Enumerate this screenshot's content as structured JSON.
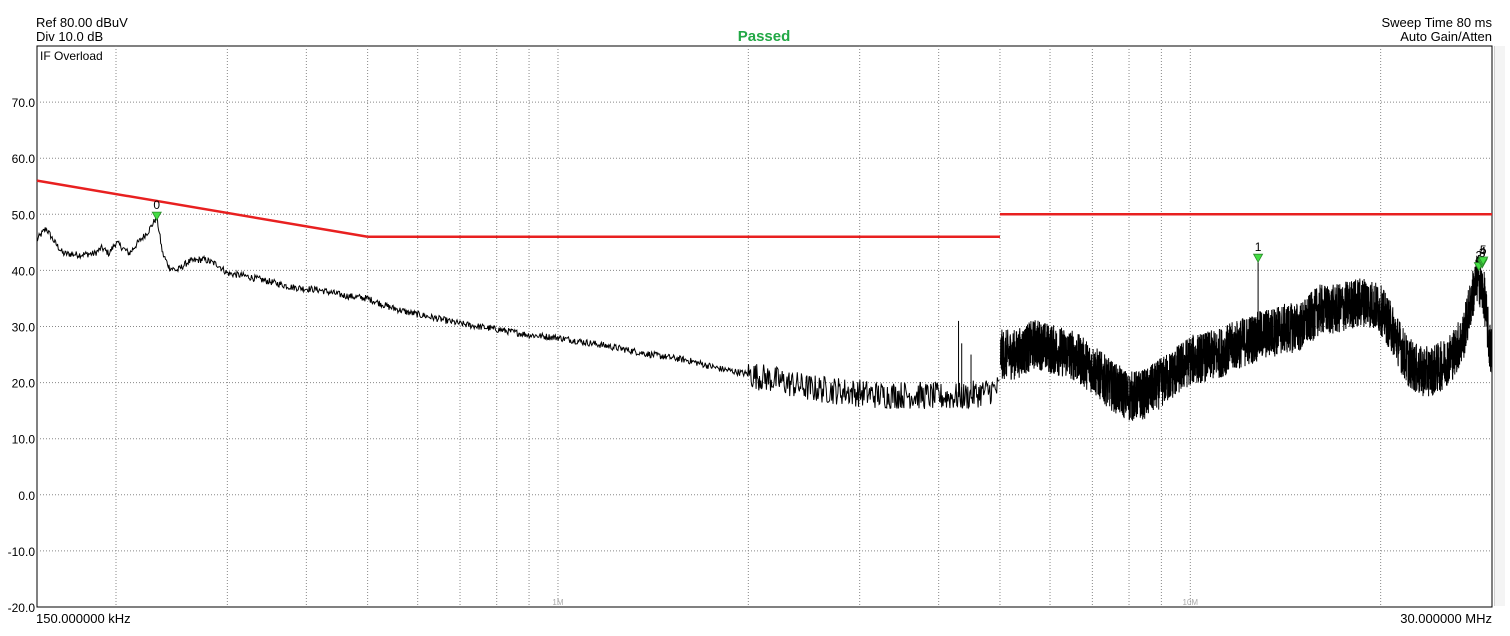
{
  "header": {
    "ref": "Ref 80.00 dBuV",
    "div": "Div 10.0 dB",
    "status": "Passed",
    "sweep_time": "Sweep Time 80 ms",
    "gain": "Auto Gain/Atten",
    "overload": "IF Overload",
    "status_color": "#22a845"
  },
  "chart_data": {
    "type": "line",
    "title": "",
    "xlabel": "",
    "ylabel": "",
    "x_scale": "log",
    "xlim_hz": [
      150000,
      30000000
    ],
    "ylim": [
      -20,
      80
    ],
    "grid": true,
    "x_start_label": "150.000000 kHz",
    "x_stop_label": "30.000000 MHz",
    "x_decade_labels": [
      {
        "hz": 1000000,
        "label": "1M"
      },
      {
        "hz": 10000000,
        "label": "10M"
      }
    ],
    "y_ticks": [
      {
        "value": 70,
        "label": "70.0"
      },
      {
        "value": 60,
        "label": "60.0"
      },
      {
        "value": 50,
        "label": "50.0"
      },
      {
        "value": 40,
        "label": "40.0"
      },
      {
        "value": 30,
        "label": "30.0"
      },
      {
        "value": 20,
        "label": "20.0"
      },
      {
        "value": 10,
        "label": "10.0"
      },
      {
        "value": 0,
        "label": "0.0"
      },
      {
        "value": -10,
        "label": "-10.0"
      },
      {
        "value": -20,
        "label": "-20.0"
      }
    ],
    "limit_lines": [
      {
        "x": [
          150000,
          500000
        ],
        "y": [
          56,
          46
        ],
        "color": "#e82020"
      },
      {
        "x": [
          500000,
          5000000
        ],
        "y": [
          46,
          46
        ],
        "color": "#e82020"
      },
      {
        "x": [
          5000000,
          30000000
        ],
        "y": [
          50,
          50
        ],
        "color": "#e82020"
      }
    ],
    "trace": {
      "color": "#000000",
      "points": [
        [
          150000,
          45.5
        ],
        [
          155000,
          47.5
        ],
        [
          160000,
          45
        ],
        [
          165000,
          43
        ],
        [
          175000,
          42.8
        ],
        [
          185000,
          43
        ],
        [
          190000,
          44
        ],
        [
          195000,
          43
        ],
        [
          200000,
          45
        ],
        [
          210000,
          43
        ],
        [
          215000,
          44.5
        ],
        [
          225000,
          47
        ],
        [
          232000,
          49.5
        ],
        [
          237000,
          43
        ],
        [
          243000,
          40.5
        ],
        [
          250000,
          40
        ],
        [
          260000,
          41.5
        ],
        [
          275000,
          42
        ],
        [
          290000,
          41
        ],
        [
          300000,
          39.5
        ],
        [
          320000,
          39
        ],
        [
          350000,
          38
        ],
        [
          380000,
          37
        ],
        [
          420000,
          36.5
        ],
        [
          460000,
          35.5
        ],
        [
          500000,
          35
        ],
        [
          540000,
          33.5
        ],
        [
          580000,
          32.5
        ],
        [
          640000,
          31.5
        ],
        [
          700000,
          30.5
        ],
        [
          800000,
          29.5
        ],
        [
          900000,
          28.5
        ],
        [
          1000000,
          28
        ],
        [
          1200000,
          26.5
        ],
        [
          1400000,
          25
        ],
        [
          1600000,
          24
        ],
        [
          1800000,
          22.5
        ],
        [
          2000000,
          21.5
        ],
        [
          2200000,
          20.5
        ],
        [
          2500000,
          19
        ],
        [
          2800000,
          18.5
        ],
        [
          3200000,
          17.8
        ],
        [
          3600000,
          17.8
        ],
        [
          4000000,
          17.5
        ],
        [
          4400000,
          17.5
        ],
        [
          4800000,
          18.5
        ],
        [
          5000000,
          19
        ],
        [
          5010000,
          25
        ],
        [
          5300000,
          25
        ],
        [
          5700000,
          27
        ],
        [
          6000000,
          26
        ],
        [
          6500000,
          25
        ],
        [
          7000000,
          22.5
        ],
        [
          7500000,
          19.5
        ],
        [
          8000000,
          17.5
        ],
        [
          8500000,
          18
        ],
        [
          9000000,
          20
        ],
        [
          9500000,
          22
        ],
        [
          10000000,
          24
        ],
        [
          11000000,
          25
        ],
        [
          12000000,
          27
        ],
        [
          13000000,
          28.5
        ],
        [
          14000000,
          29.5
        ],
        [
          15000000,
          30
        ],
        [
          16000000,
          33
        ],
        [
          17000000,
          33
        ],
        [
          18000000,
          34
        ],
        [
          19000000,
          34.5
        ],
        [
          20000000,
          33
        ],
        [
          21000000,
          29
        ],
        [
          22000000,
          24
        ],
        [
          23000000,
          22
        ],
        [
          24000000,
          22
        ],
        [
          25000000,
          23
        ],
        [
          26000000,
          25
        ],
        [
          27000000,
          28
        ],
        [
          28000000,
          36
        ],
        [
          28500000,
          39
        ],
        [
          29200000,
          35
        ],
        [
          29700000,
          27
        ],
        [
          30000000,
          25
        ]
      ],
      "bands": [
        [
          5000000,
          30000000,
          4.5
        ],
        [
          2000000,
          5000000,
          2.5
        ]
      ],
      "spikes": [
        [
          4300000,
          31
        ],
        [
          4350000,
          27
        ],
        [
          4500000,
          25
        ],
        [
          12800000,
          42
        ]
      ]
    },
    "markers": [
      {
        "label": "0",
        "x": 232000,
        "y": 49.5
      },
      {
        "label": "1",
        "x": 12800000,
        "y": 42
      },
      {
        "label": "2",
        "x": 28600000,
        "y": 40.5
      },
      {
        "label": "3",
        "x": 28950000,
        "y": 41
      },
      {
        "label": "4",
        "x": 29000000,
        "y": 41.2
      },
      {
        "label": "5",
        "x": 29050000,
        "y": 41.5
      }
    ],
    "marker_color": "#44dd44"
  }
}
